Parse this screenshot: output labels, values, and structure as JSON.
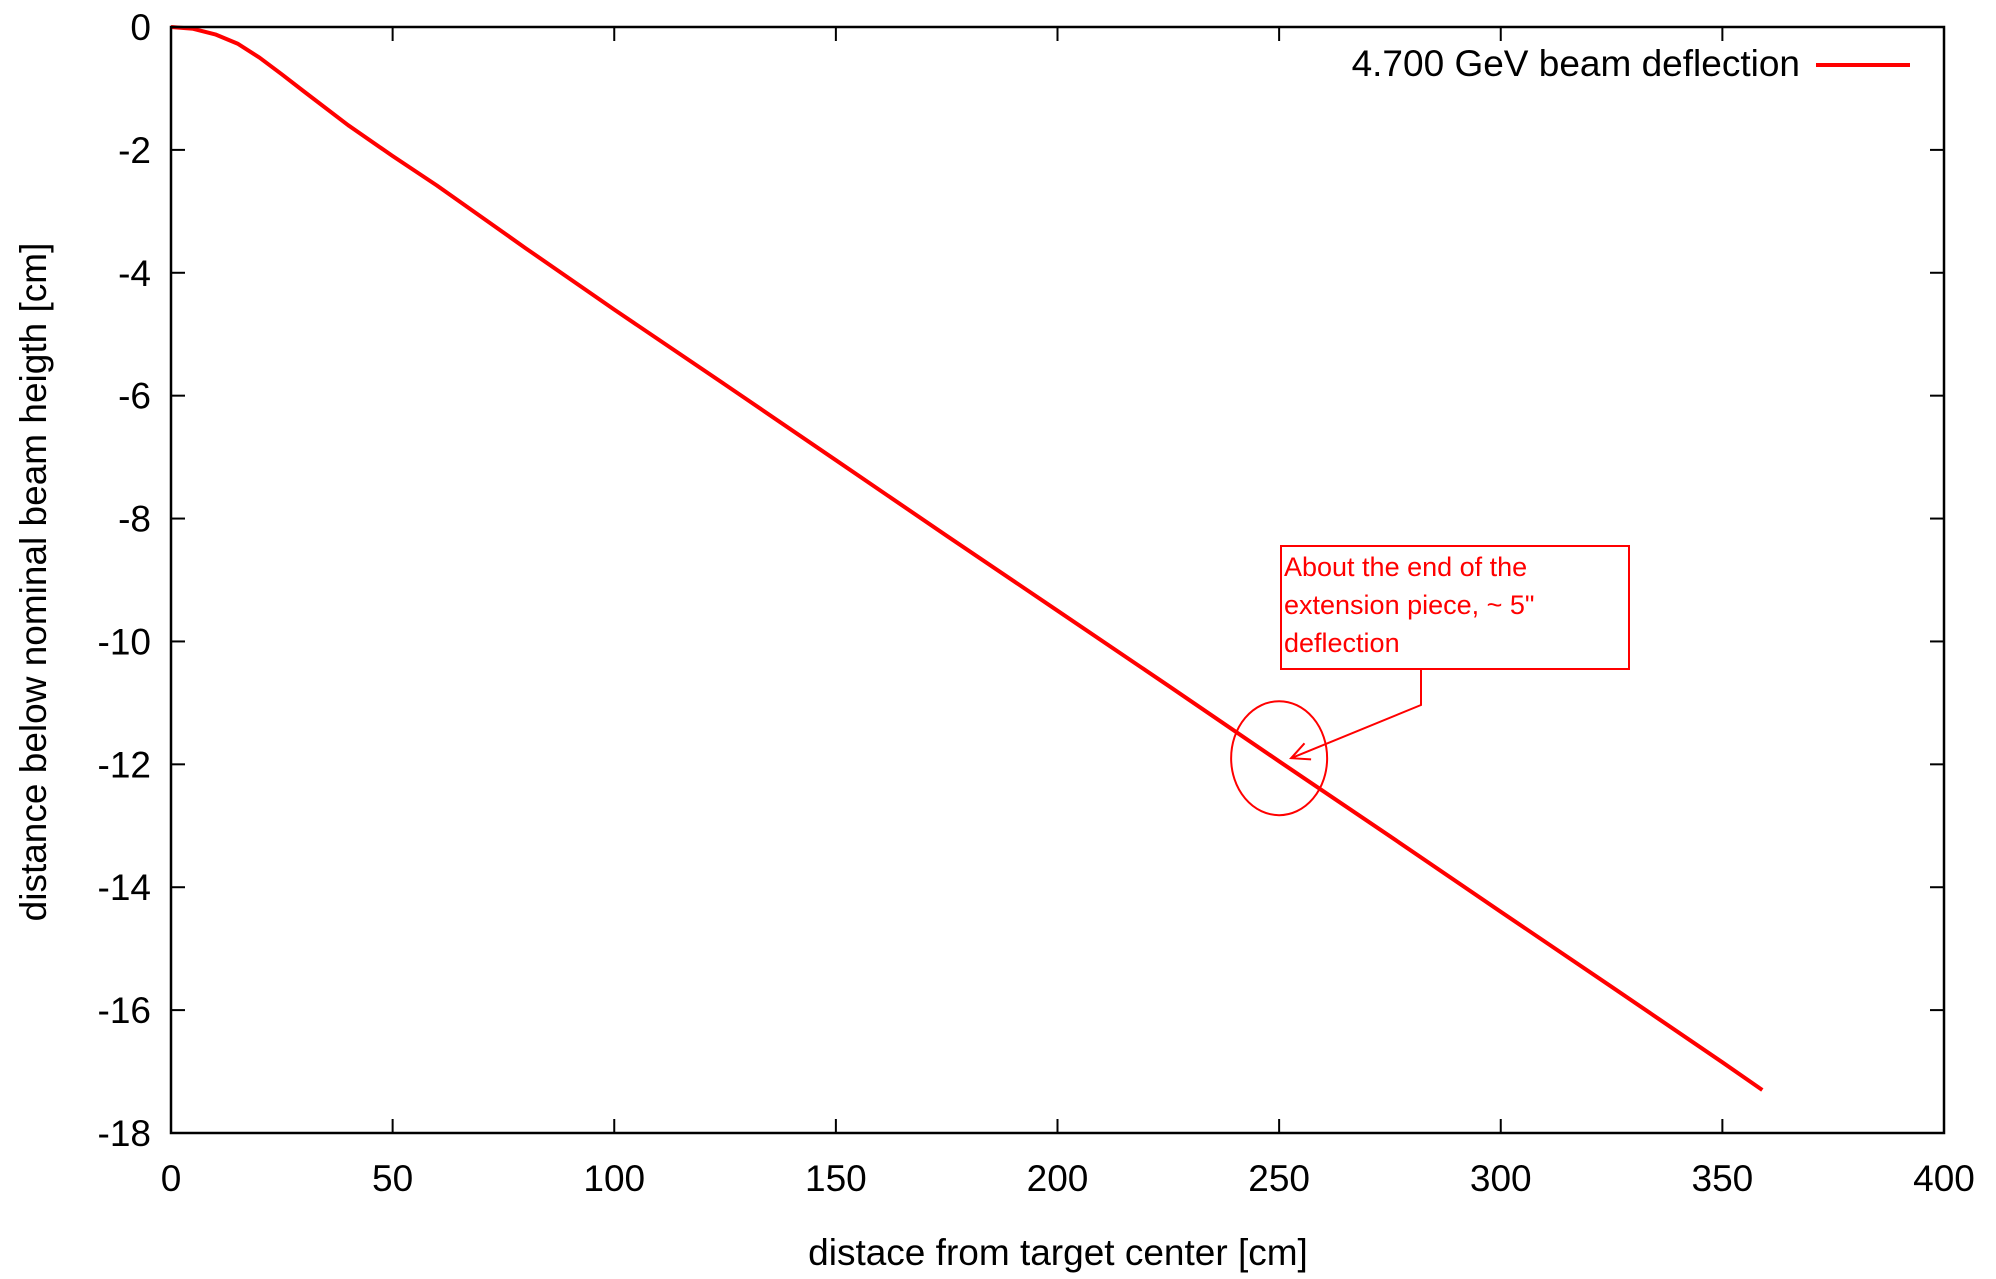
{
  "chart_data": {
    "type": "line",
    "title": "",
    "xlabel": "distace from target center [cm]",
    "ylabel": "distance below nominal beam heigth [cm]",
    "xlim": [
      0,
      400
    ],
    "ylim": [
      -18,
      0
    ],
    "xticks": [
      0,
      50,
      100,
      150,
      200,
      250,
      300,
      350,
      400
    ],
    "yticks": [
      0,
      -2,
      -4,
      -6,
      -8,
      -10,
      -12,
      -14,
      -16,
      -18
    ],
    "xtick_labels": [
      "0",
      "50",
      "100",
      "150",
      "200",
      "250",
      "300",
      "350",
      "400"
    ],
    "ytick_labels": [
      "0",
      "-2",
      "-4",
      "-6",
      "-8",
      "-10",
      "-12",
      "-14",
      "-16",
      "-18"
    ],
    "grid": false,
    "legend_position": "top-right",
    "series": [
      {
        "name": "4.700 GeV beam deflection",
        "color": "#ff0000",
        "x": [
          0,
          5,
          10,
          15,
          20,
          25,
          30,
          40,
          50,
          60,
          80,
          100,
          125,
          150,
          175,
          200,
          225,
          250,
          275,
          300,
          325,
          350,
          359
        ],
        "y": [
          0,
          -0.03,
          -0.12,
          -0.27,
          -0.5,
          -0.77,
          -1.05,
          -1.6,
          -2.1,
          -2.58,
          -3.6,
          -4.6,
          -5.82,
          -7.05,
          -8.28,
          -9.5,
          -10.72,
          -11.95,
          -13.17,
          -14.4,
          -15.62,
          -16.85,
          -17.3
        ]
      }
    ],
    "annotations": [
      {
        "text_lines": [
          "About the end of the",
          "extension piece, ~ 5\"",
          "deflection"
        ],
        "color": "#ff0000",
        "target": {
          "x": 250,
          "y": -11.9
        }
      }
    ]
  }
}
